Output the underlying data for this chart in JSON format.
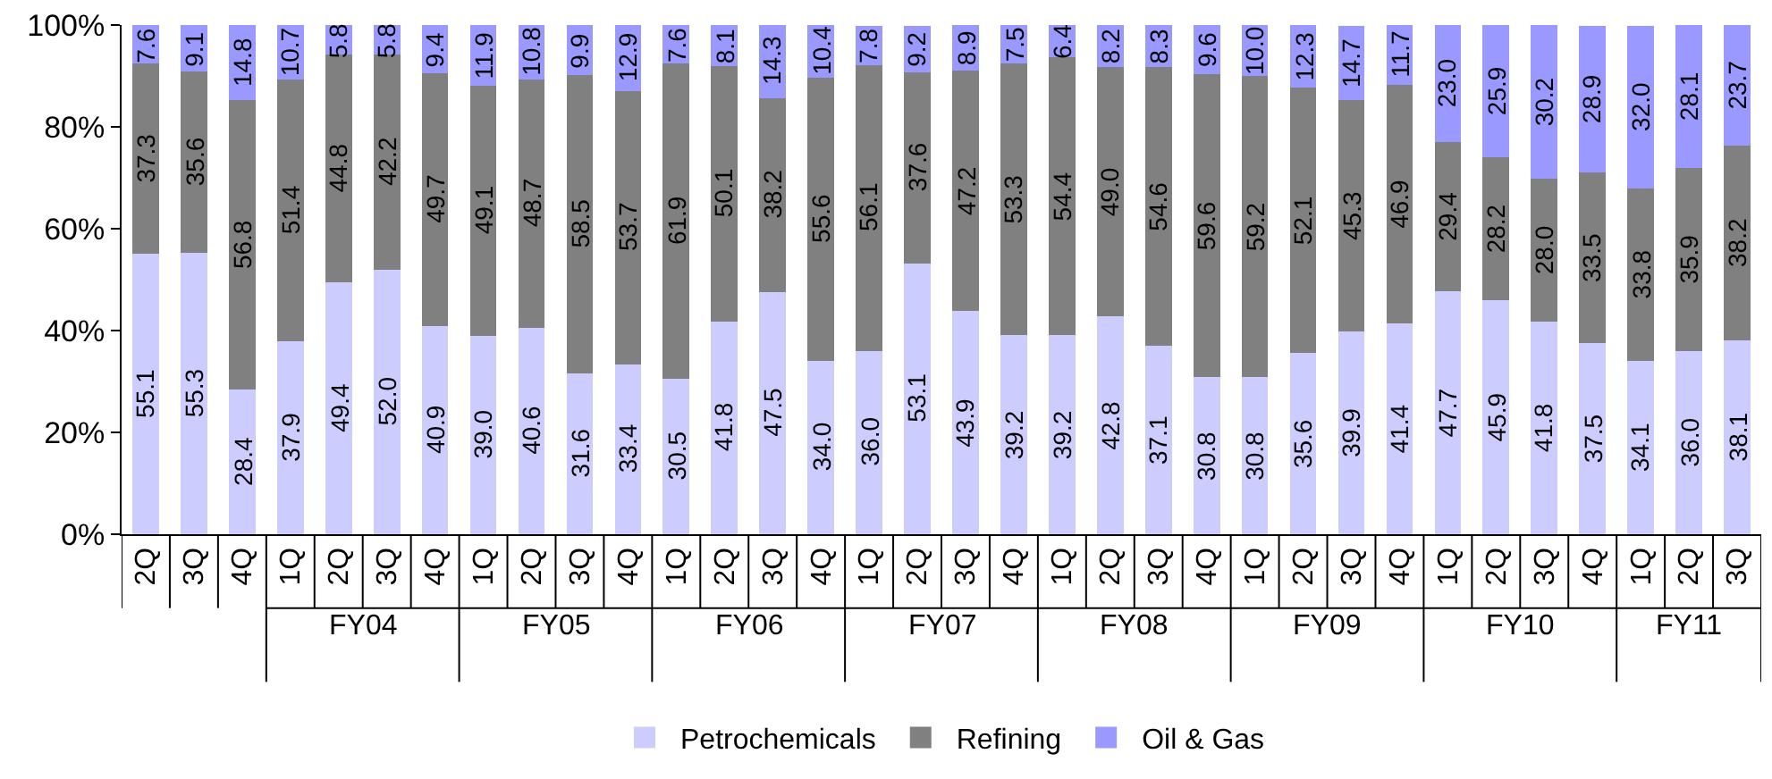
{
  "chart_data": {
    "type": "bar",
    "stacked": true,
    "legend": "bottom",
    "categories": [
      "2Q",
      "3Q",
      "4Q",
      "1Q",
      "2Q",
      "3Q",
      "4Q",
      "1Q",
      "2Q",
      "3Q",
      "4Q",
      "1Q",
      "2Q",
      "3Q",
      "4Q",
      "1Q",
      "2Q",
      "3Q",
      "4Q",
      "1Q",
      "2Q",
      "3Q",
      "4Q",
      "1Q",
      "2Q",
      "3Q",
      "4Q",
      "1Q",
      "2Q",
      "3Q",
      "4Q",
      "1Q",
      "2Q",
      "3Q"
    ],
    "series": [
      {
        "name": "Petrochemicals",
        "color": "#ccccff",
        "values": [
          55.1,
          55.3,
          28.4,
          37.9,
          49.4,
          52.0,
          40.9,
          39.0,
          40.6,
          31.6,
          33.4,
          30.5,
          41.8,
          47.5,
          34.0,
          36.0,
          53.1,
          43.9,
          39.2,
          39.2,
          42.8,
          37.1,
          30.8,
          30.8,
          35.6,
          39.9,
          41.4,
          47.7,
          45.9,
          41.8,
          37.5,
          34.1,
          36.0,
          38.1
        ],
        "value_labels": [
          "55.1",
          "55.3",
          "28.4",
          "37.9",
          "49.4",
          "52.0",
          "40.9",
          "39.0",
          "40.6",
          "31.6",
          "33.4",
          "30.5",
          "41.8",
          "47.5",
          "34.0",
          "36.0",
          "53.1",
          "43.9",
          "39.2",
          "39.2",
          "42.8",
          "37.1",
          "30.8",
          "30.8",
          "35.6",
          "39.9",
          "41.4",
          "47.7",
          "45.9",
          "41.8",
          "37.5",
          "34.1",
          "36.0",
          "38.1"
        ]
      },
      {
        "name": "Refining",
        "color": "#808080",
        "values": [
          37.3,
          35.6,
          56.8,
          51.4,
          44.8,
          42.2,
          49.7,
          49.1,
          48.7,
          58.5,
          53.7,
          61.9,
          50.1,
          38.2,
          55.6,
          56.1,
          37.6,
          47.2,
          53.3,
          54.4,
          49.0,
          54.6,
          59.6,
          59.2,
          52.1,
          45.3,
          46.9,
          29.4,
          28.2,
          28.0,
          33.5,
          33.8,
          35.9,
          38.2
        ],
        "value_labels": [
          "37.3",
          "35.6",
          "56.8",
          "51.4",
          "44.8",
          "42.2",
          "49.7",
          "49.1",
          "48.7",
          "58.5",
          "53.7",
          "61.9",
          "50.1",
          "38.2",
          "55.6",
          "56.1",
          "37.6",
          "47.2",
          "53.3",
          "54.4",
          "49.0",
          "54.6",
          "59.6",
          "59.2",
          "52.1",
          "45.3",
          "46.9",
          "29.4",
          "28.2",
          "28.0",
          "33.5",
          "33.8",
          "35.9",
          "38.2"
        ]
      },
      {
        "name": "Oil & Gas",
        "color": "#9999ff",
        "values": [
          7.6,
          9.1,
          14.8,
          10.7,
          5.8,
          5.8,
          9.4,
          11.9,
          10.8,
          9.9,
          12.9,
          7.6,
          8.1,
          14.3,
          10.4,
          7.8,
          9.2,
          8.9,
          7.5,
          6.4,
          8.2,
          8.3,
          9.6,
          10.0,
          12.3,
          14.7,
          11.7,
          23.0,
          25.9,
          30.2,
          28.9,
          32.0,
          28.1,
          23.7
        ],
        "value_labels": [
          "7.6",
          "9.1",
          "14.8",
          "10.7",
          "5.8",
          "5.8",
          "9.4",
          "11.9",
          "10.8",
          "9.9",
          "12.9",
          "7.6",
          "8.1",
          "14.3",
          "10.4",
          "7.8",
          "9.2",
          "8.9",
          "7.5",
          "6.4",
          "8.2",
          "8.3",
          "9.6",
          "10.0",
          "12.3",
          "14.7",
          "11.7",
          "23.0",
          "25.9",
          "30.2",
          "28.9",
          "32.0",
          "28.1",
          "23.7"
        ]
      }
    ],
    "ylim": [
      0,
      100
    ],
    "yticks": [
      {
        "value": 0,
        "label": "0%"
      },
      {
        "value": 20,
        "label": "20%"
      },
      {
        "value": 40,
        "label": "40%"
      },
      {
        "value": 60,
        "label": "60%"
      },
      {
        "value": 80,
        "label": "80%"
      },
      {
        "value": 100,
        "label": "100%"
      }
    ],
    "annotations": [
      "FY04",
      "FY05",
      "FY06",
      "FY07",
      "FY08",
      "FY09",
      "FY10",
      "FY11"
    ]
  }
}
